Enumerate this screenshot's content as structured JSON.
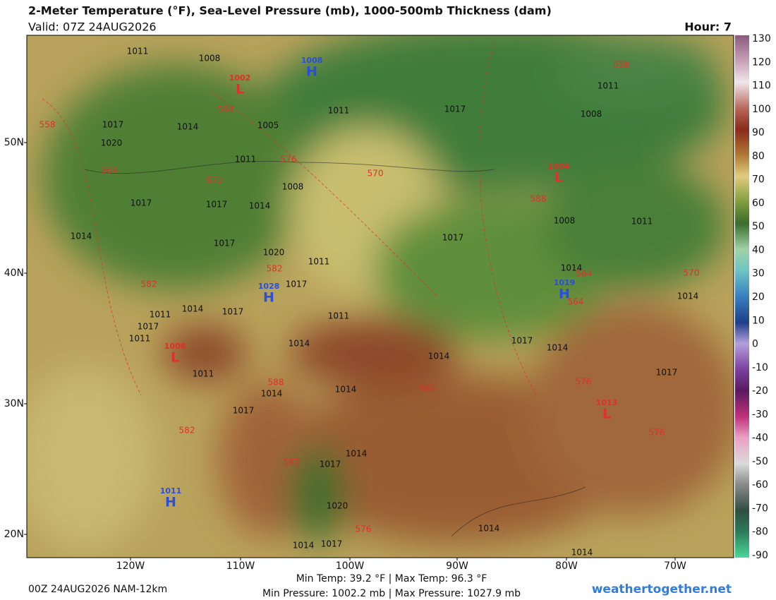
{
  "header": {
    "title": "2-Meter Temperature (°F), Sea-Level Pressure (mb), 1000-500mb Thickness (dam)",
    "valid": "Valid: 07Z 24AUG2026",
    "hour": "Hour: 7"
  },
  "colorbar": {
    "ticks": [
      "130",
      "120",
      "110",
      "100",
      "90",
      "80",
      "70",
      "60",
      "50",
      "40",
      "30",
      "20",
      "10",
      "0",
      "-10",
      "-20",
      "-30",
      "-40",
      "-50",
      "-60",
      "-70",
      "-80",
      "-90"
    ]
  },
  "axes": {
    "lat_labels": [
      "50N",
      "40N",
      "30N",
      "20N"
    ],
    "lon_labels": [
      "120W",
      "110W",
      "100W",
      "90W",
      "80W",
      "70W"
    ]
  },
  "map": {
    "pressure_centers": [
      {
        "type": "H",
        "value": "1008"
      },
      {
        "type": "L",
        "value": "1002"
      },
      {
        "type": "H",
        "value": "1028"
      },
      {
        "type": "L",
        "value": "1008"
      },
      {
        "type": "L",
        "value": "1004"
      },
      {
        "type": "H",
        "value": "1019"
      },
      {
        "type": "L",
        "value": "1013"
      },
      {
        "type": "H",
        "value": "1011"
      }
    ],
    "isobar_labels": [
      "1011",
      "1008",
      "1017",
      "1014",
      "1020",
      "1005",
      "1011",
      "1008",
      "1017",
      "1017",
      "1014",
      "1014",
      "1017",
      "1020",
      "1011",
      "1017",
      "1011",
      "1014",
      "1017",
      "1017",
      "1011",
      "1011",
      "1014",
      "1011",
      "1014",
      "1014",
      "1014",
      "1017",
      "1014",
      "1017",
      "1011",
      "1008",
      "1017",
      "1011",
      "1008",
      "1014",
      "1014",
      "1017",
      "1017",
      "1017",
      "1014",
      "1020",
      "1014",
      "1017",
      "1014",
      "1014",
      "1011"
    ],
    "thickness_labels": [
      "558",
      "564",
      "564",
      "576",
      "570",
      "570",
      "588",
      "582",
      "582",
      "588",
      "582",
      "576",
      "576",
      "564",
      "564",
      "570",
      "558",
      "582",
      "582",
      "576"
    ]
  },
  "footer": {
    "run": "00Z 24AUG2026 NAM-12km",
    "temp_range": "Min Temp:  39.2 °F | Max Temp:  96.3 °F",
    "pressure_range": "Min Pressure: 1002.2 mb | Max Pressure: 1027.9 mb",
    "site": "weathertogether.net"
  }
}
